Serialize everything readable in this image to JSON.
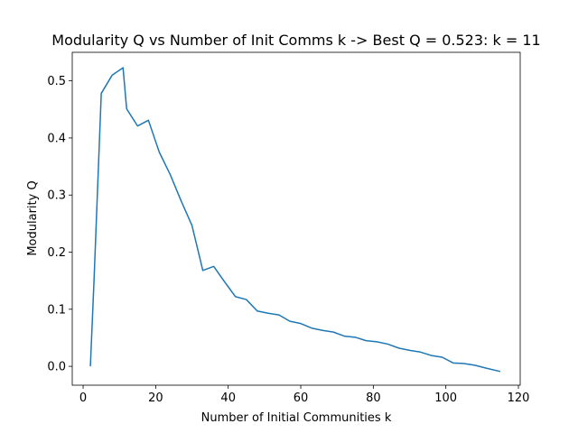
{
  "chart_data": {
    "type": "line",
    "title": "Modularity Q vs Number of Init Comms k -> Best Q = 0.523: k = 11",
    "xlabel": "Number of Initial Communities k",
    "ylabel": "Modularity Q",
    "xlim": [
      -3,
      120.5
    ],
    "ylim": [
      -0.033,
      0.55
    ],
    "xticks": [
      0,
      20,
      40,
      60,
      80,
      100,
      120
    ],
    "xtick_labels": [
      "0",
      "20",
      "40",
      "60",
      "80",
      "100",
      "120"
    ],
    "yticks": [
      0.0,
      0.1,
      0.2,
      0.3,
      0.4,
      0.5
    ],
    "ytick_labels": [
      "0.0",
      "0.1",
      "0.2",
      "0.3",
      "0.4",
      "0.5"
    ],
    "grid": false,
    "series": [
      {
        "color": "#1f77b4",
        "x": [
          2,
          3,
          5,
          8,
          11,
          12,
          15,
          18,
          21,
          24,
          27,
          30,
          33,
          36,
          39,
          42,
          45,
          48,
          51,
          54,
          57,
          60,
          63,
          66,
          69,
          72,
          75,
          78,
          81,
          84,
          87,
          90,
          93,
          96,
          99,
          102,
          105,
          108,
          111,
          115
        ],
        "y": [
          0.0,
          0.15,
          0.478,
          0.51,
          0.523,
          0.451,
          0.421,
          0.431,
          0.375,
          0.336,
          0.29,
          0.247,
          0.168,
          0.175,
          0.148,
          0.122,
          0.117,
          0.097,
          0.093,
          0.09,
          0.079,
          0.075,
          0.067,
          0.063,
          0.06,
          0.053,
          0.051,
          0.045,
          0.043,
          0.039,
          0.032,
          0.028,
          0.025,
          0.019,
          0.016,
          0.006,
          0.005,
          0.002,
          -0.003,
          -0.009
        ]
      }
    ]
  }
}
